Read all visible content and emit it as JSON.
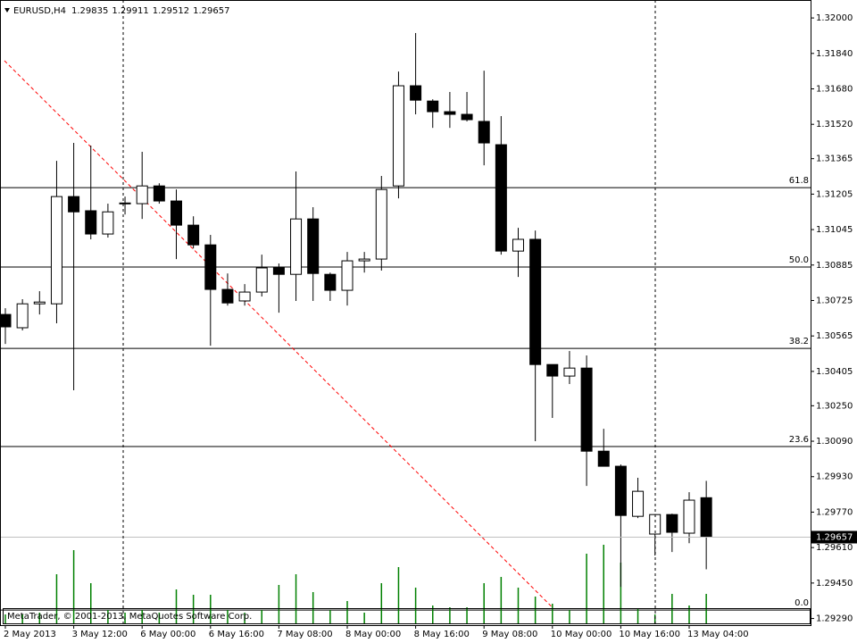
{
  "chart_data": {
    "type": "candlestick",
    "symbol": "EURUSD,H4",
    "footer": "MetaTrader, © 2001-2013, MetaQuotes Software Corp.",
    "categories": [
      "2 May 2013",
      null,
      null,
      null,
      "3 May 12:00",
      null,
      null,
      null,
      "6 May 00:00",
      null,
      null,
      null,
      "6 May 16:00",
      null,
      null,
      null,
      "7 May 08:00",
      null,
      null,
      null,
      "8 May 00:00",
      null,
      null,
      null,
      "8 May 16:00",
      null,
      null,
      null,
      "9 May 08:00",
      null,
      null,
      null,
      "10 May 00:00",
      null,
      null,
      null,
      "10 May 16:00",
      null,
      null,
      null,
      "13 May 04:00",
      null
    ],
    "open": [
      1.30662,
      1.30602,
      1.3071,
      1.3071,
      1.31194,
      1.3113,
      1.31025,
      1.31162,
      1.31162,
      1.31242,
      1.31174,
      1.31065,
      1.30976,
      1.30775,
      1.30723,
      1.30763,
      1.30872,
      1.30843,
      1.31093,
      1.30843,
      1.30771,
      1.30904,
      1.30912,
      1.31242,
      1.31694,
      1.31625,
      1.31577,
      1.31565,
      1.31533,
      1.31428,
      1.30948,
      1.31001,
      1.30436,
      1.30384,
      1.3042,
      1.30045,
      1.29977,
      1.29751,
      1.29671,
      1.29759,
      1.29675,
      1.29835
    ],
    "high": [
      1.3069,
      1.30731,
      1.30767,
      1.31355,
      1.31436,
      1.31424,
      1.31162,
      1.31194,
      1.31396,
      1.31254,
      1.31226,
      1.31105,
      1.31021,
      1.30847,
      1.30799,
      1.30932,
      1.30892,
      1.31307,
      1.31146,
      1.30851,
      1.30944,
      1.30944,
      1.31287,
      1.31758,
      1.31932,
      1.31633,
      1.31666,
      1.31666,
      1.31762,
      1.31557,
      1.31053,
      1.31041,
      1.30436,
      1.30497,
      1.30477,
      1.30146,
      1.29985,
      1.29925,
      1.29759,
      1.29763,
      1.2986,
      1.29911
    ],
    "low": [
      1.30529,
      1.3059,
      1.30662,
      1.30622,
      1.3032,
      1.31001,
      1.31009,
      1.31113,
      1.31093,
      1.31162,
      1.30912,
      1.3096,
      1.30521,
      1.30702,
      1.30702,
      1.30743,
      1.3067,
      1.30723,
      1.30723,
      1.30723,
      1.30702,
      1.30851,
      1.3086,
      1.31186,
      1.31565,
      1.31504,
      1.31504,
      1.31533,
      1.31335,
      1.30932,
      1.30831,
      1.3009,
      1.30195,
      1.30348,
      1.29888,
      1.29977,
      1.29433,
      1.29743,
      1.29574,
      1.2959,
      1.2963,
      1.29512
    ],
    "close": [
      1.30606,
      1.3071,
      1.30718,
      1.31194,
      1.31125,
      1.31025,
      1.31125,
      1.31165,
      1.31242,
      1.31174,
      1.31065,
      1.30976,
      1.30775,
      1.30714,
      1.30763,
      1.30872,
      1.30843,
      1.31093,
      1.30847,
      1.30771,
      1.30904,
      1.30912,
      1.31226,
      1.31694,
      1.31629,
      1.31577,
      1.31565,
      1.31541,
      1.31436,
      1.30948,
      1.31001,
      1.30436,
      1.30384,
      1.3042,
      1.30045,
      1.29977,
      1.29755,
      1.29864,
      1.29759,
      1.29679,
      1.29824,
      1.29657
    ],
    "volume": [
      10,
      10,
      12,
      55,
      82,
      45,
      15,
      12,
      15,
      12,
      38,
      32,
      32,
      15,
      12,
      15,
      43,
      55,
      35,
      15,
      25,
      12,
      45,
      63,
      40,
      20,
      18,
      18,
      45,
      52,
      40,
      30,
      22,
      15,
      78,
      88,
      68,
      17,
      10,
      33,
      20,
      33
    ],
    "bull_color": "#ffffff",
    "bear_color": "#000000",
    "volume_color": "#008000",
    "ylim": [
      1.2926,
      1.32081
    ],
    "yticks": [
      {
        "value": 1.32,
        "label": "1.32000"
      },
      {
        "value": 1.3184,
        "label": "1.31840"
      },
      {
        "value": 1.3168,
        "label": "1.31680"
      },
      {
        "value": 1.3152,
        "label": "1.31520"
      },
      1.31365,
      1.31205,
      1.31045,
      1.30885,
      1.30725,
      1.30565,
      1.30405,
      {
        "value": 1.3025,
        "label": "1.30250"
      },
      {
        "value": 1.3009,
        "label": "1.30090"
      },
      {
        "value": 1.2993,
        "label": "1.29930"
      },
      {
        "value": 1.2977,
        "label": "1.29770"
      },
      {
        "value": 1.2961,
        "label": "1.29610"
      },
      {
        "value": 1.2945,
        "label": "1.29450"
      },
      {
        "value": 1.2929,
        "label": "1.29290"
      }
    ],
    "fibonacci": [
      {
        "label": "61.8",
        "value": 1.31234
      },
      {
        "label": "50.0",
        "value": 1.30876
      },
      {
        "label": "38.2",
        "value": 1.30509
      },
      {
        "label": "23.6",
        "value": 1.30066
      },
      {
        "label": "0.0",
        "value": 1.29328
      }
    ],
    "trendline": {
      "color": "#ff0000",
      "start": [
        0,
        1.31807
      ],
      "end": [
        32,
        1.2934
      ]
    }
  }
}
